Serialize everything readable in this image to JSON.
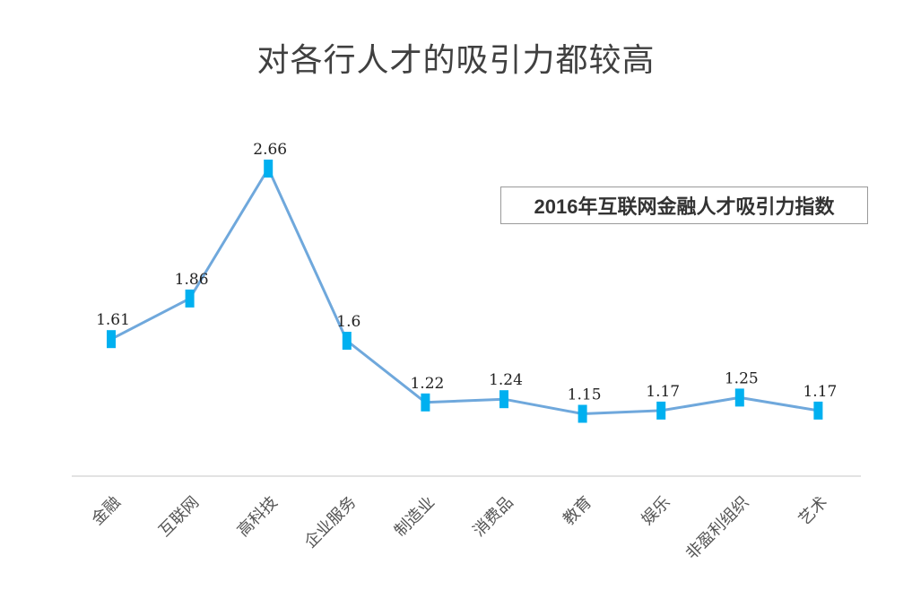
{
  "chart_data": {
    "type": "line",
    "title": "对各行人才的吸引力都较高",
    "categories": [
      "金融",
      "互联网",
      "高科技",
      "企业服务",
      "制造业",
      "消费品",
      "教育",
      "娱乐",
      "非盈利组织",
      "艺术"
    ],
    "series": [
      {
        "name": "2016年互联网金融人才吸引力指数",
        "values": [
          1.61,
          1.86,
          2.66,
          1.6,
          1.22,
          1.24,
          1.15,
          1.17,
          1.25,
          1.17
        ],
        "labels": [
          "1.61",
          "1.86",
          "2.66",
          "1.6",
          "1.22",
          "1.24",
          "1.15",
          "1.17",
          "1.25",
          "1.17"
        ]
      }
    ],
    "legend": "top-right",
    "grid": false,
    "xlabel": "",
    "ylabel": "",
    "colors": {
      "line": "#6fa8dc",
      "marker": "#00b0f0",
      "axis": "#d9d9d9"
    }
  }
}
